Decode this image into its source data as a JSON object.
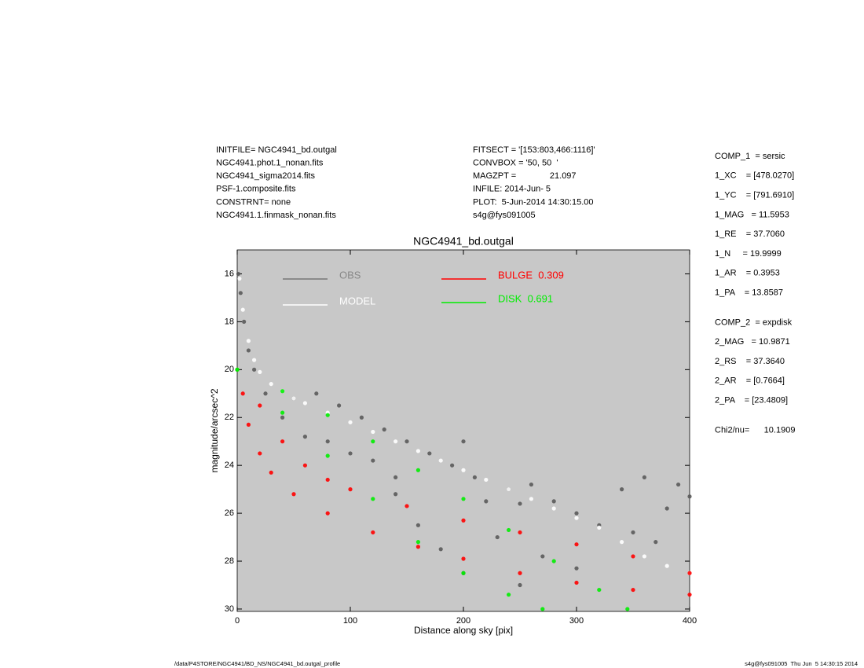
{
  "header": {
    "left": [
      "INITFILE= NGC4941_bd.outgal",
      "NGC4941.phot.1_nonan.fits",
      "NGC4941_sigma2014.fits",
      "PSF-1.composite.fits",
      "CONSTRNT= none",
      "NGC4941.1.finmask_nonan.fits"
    ],
    "middle": [
      "FITSECT = '[153:803,466:1116]'",
      "CONVBOX = '50, 50  '",
      "MAGZPT =              21.097",
      "INFILE: 2014-Jun- 5",
      "PLOT:  5-Jun-2014 14:30:15.00",
      "s4g@fys091005"
    ]
  },
  "right_panel": {
    "component_1": [
      "COMP_1  = sersic",
      "1_XC    = [478.0270]",
      "1_YC    = [791.6910]",
      "1_MAG   = 11.5953",
      "1_RE    = 37.7060",
      "1_N     = 19.9999",
      "1_AR    = 0.3953",
      "1_PA    = 13.8587"
    ],
    "component_2": [
      "COMP_2  = expdisk",
      "2_MAG   = 10.9871",
      "2_RS    = 37.3640",
      "2_AR    = [0.7664]",
      "2_PA    = [23.4809]"
    ],
    "fit": [
      "Chi2/nu=      10.1909"
    ]
  },
  "footer": {
    "left": "/data/P4STORE/NGC4941/BD_NS/NGC4941_bd.outgal_profile",
    "right": "s4g@fys091005  Thu Jun  5 14:30:15 2014"
  },
  "chart_data": {
    "type": "scatter",
    "title": "NGC4941_bd.outgal",
    "xlabel": "Distance along sky [pix]",
    "ylabel": "magnitude/arcsec^2",
    "xlim": [
      0,
      400
    ],
    "ylim": [
      30.1,
      15
    ],
    "xticks": [
      0,
      100,
      200,
      300,
      400
    ],
    "yticks": [
      16,
      18,
      20,
      22,
      24,
      26,
      28,
      30
    ],
    "background": "#c8c8c8",
    "series": [
      {
        "name": "OBS",
        "color": "#5a5a5a",
        "x": [
          1,
          3,
          6,
          10,
          15,
          25,
          40,
          50,
          60,
          70,
          80,
          90,
          100,
          110,
          120,
          130,
          140,
          150,
          160,
          170,
          180,
          190,
          200,
          210,
          220,
          230,
          240,
          250,
          260,
          270,
          280,
          300,
          320,
          340,
          350,
          360,
          370,
          380,
          390,
          400,
          140,
          200,
          250,
          300
        ],
        "y": [
          16.0,
          16.8,
          18.0,
          19.2,
          20.0,
          21.0,
          22.0,
          21.2,
          22.8,
          21.0,
          23.0,
          21.5,
          23.5,
          22.0,
          23.8,
          22.5,
          24.5,
          23.0,
          26.5,
          23.5,
          27.5,
          24.0,
          28.5,
          24.5,
          25.5,
          27.0,
          25.0,
          29.0,
          24.8,
          27.8,
          25.5,
          28.3,
          26.5,
          25.0,
          26.8,
          24.5,
          27.2,
          25.8,
          24.8,
          25.3,
          25.2,
          23.0,
          25.6,
          26.0
        ]
      },
      {
        "name": "MODEL",
        "color": "#ffffff",
        "x": [
          2,
          5,
          10,
          15,
          20,
          30,
          40,
          50,
          60,
          80,
          100,
          120,
          140,
          160,
          180,
          200,
          220,
          240,
          260,
          280,
          300,
          320,
          340,
          360,
          380,
          400
        ],
        "y": [
          16.2,
          17.5,
          18.8,
          19.6,
          20.1,
          20.6,
          20.9,
          21.2,
          21.4,
          21.8,
          22.2,
          22.6,
          23.0,
          23.4,
          23.8,
          24.2,
          24.6,
          25.0,
          25.4,
          25.8,
          26.2,
          26.6,
          27.2,
          27.8,
          28.2,
          28.5
        ]
      },
      {
        "name": "BULGE  0.309",
        "color": "#ff0000",
        "x": [
          0,
          20,
          40,
          60,
          80,
          100,
          150,
          200,
          250,
          300,
          350,
          400,
          5,
          10,
          20,
          30,
          50,
          80,
          120,
          160,
          200,
          250,
          300,
          350,
          400
        ],
        "y": [
          20.0,
          21.5,
          23.0,
          24.0,
          24.6,
          25.0,
          25.7,
          26.3,
          26.8,
          27.3,
          27.8,
          28.5,
          21.0,
          22.3,
          23.5,
          24.3,
          25.2,
          26.0,
          26.8,
          27.4,
          27.9,
          28.5,
          28.9,
          29.2,
          29.4
        ]
      },
      {
        "name": "DISK  0.691",
        "color": "#00ee00",
        "x": [
          0,
          40,
          80,
          120,
          160,
          200,
          240,
          280,
          320,
          345,
          0,
          40,
          80,
          120,
          160,
          200,
          240,
          270
        ],
        "y": [
          20.0,
          20.9,
          21.9,
          23.0,
          24.2,
          25.4,
          26.7,
          28.0,
          29.2,
          30.0,
          20.0,
          21.8,
          23.6,
          25.4,
          27.2,
          28.5,
          29.4,
          30.0
        ]
      }
    ]
  }
}
